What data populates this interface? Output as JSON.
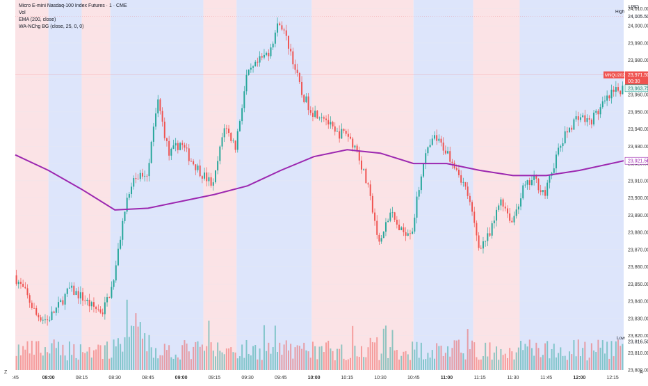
{
  "legend": {
    "title": "Micro E-mini Nasdaq-100 Index Futures · 1 · CME",
    "line1": "Vol",
    "line2": "EMA (200, close)",
    "line3": "WA-NChg BG (close, 25, 0, 0)"
  },
  "axis": {
    "currency": "USD",
    "high_label": "High",
    "high_value": "24,005.50",
    "low_label": "Low",
    "low_value": "23,816.50",
    "symbol_tag": "MNQU2025",
    "last_price": "23,971.50",
    "countdown": "00:30",
    "price_tag2": "23,963.75",
    "ema_value": "23,921.56",
    "price_ticks": [
      "24,010.00",
      "24,000.00",
      "23,990.00",
      "23,980.00",
      "23,970.00",
      "23,960.00",
      "23,950.00",
      "23,940.00",
      "23,930.00",
      "23,920.00",
      "23,910.00",
      "23,900.00",
      "23,890.00",
      "23,880.00",
      "23,870.00",
      "23,860.00",
      "23,850.00",
      "23,840.00",
      "23,830.00",
      "23,820.00",
      "23,810.00",
      "23,800.00"
    ],
    "time_ticks": [
      ":45",
      "08:00",
      "08:15",
      "08:30",
      "08:45",
      "09:00",
      "09:15",
      "09:30",
      "09:45",
      "10:00",
      "10:15",
      "10:30",
      "10:45",
      "11:00",
      "11:15",
      "11:30",
      "11:45",
      "12:00",
      "12:15"
    ],
    "corner_left": "Z",
    "corner_right": "A"
  },
  "colors": {
    "up": "#26a69a",
    "down": "#ef5350",
    "ema": "#9c27b0",
    "bg_bull": "#dde5fb",
    "bg_bear": "#fbe3e6",
    "bg_neutral": "#ffffff",
    "high_line": "#ef5350"
  },
  "chart_data": {
    "type": "candlestick",
    "title": "Micro E-mini Nasdaq-100 Index Futures · 1 · CME",
    "ylim": [
      23800,
      24015
    ],
    "price_high": 24005.5,
    "price_low": 23816.5,
    "last_price": 23971.5,
    "start_time": "07:45",
    "end_time": "12:20",
    "ema_points": [
      {
        "time": "07:45",
        "value": 23925
      },
      {
        "time": "08:00",
        "value": 23916
      },
      {
        "time": "08:15",
        "value": 23905
      },
      {
        "time": "08:30",
        "value": 23893
      },
      {
        "time": "08:45",
        "value": 23894
      },
      {
        "time": "09:00",
        "value": 23898
      },
      {
        "time": "09:15",
        "value": 23902
      },
      {
        "time": "09:30",
        "value": 23907
      },
      {
        "time": "09:45",
        "value": 23916
      },
      {
        "time": "10:00",
        "value": 23924
      },
      {
        "time": "10:15",
        "value": 23928
      },
      {
        "time": "10:30",
        "value": 23926
      },
      {
        "time": "10:45",
        "value": 23920
      },
      {
        "time": "11:00",
        "value": 23920
      },
      {
        "time": "11:15",
        "value": 23916
      },
      {
        "time": "11:30",
        "value": 23913
      },
      {
        "time": "11:45",
        "value": 23913
      },
      {
        "time": "12:00",
        "value": 23916
      },
      {
        "time": "12:20",
        "value": 23921.56
      }
    ],
    "price_path": [
      {
        "time": "07:45",
        "value": 23855
      },
      {
        "time": "07:50",
        "value": 23845
      },
      {
        "time": "07:55",
        "value": 23832
      },
      {
        "time": "08:00",
        "value": 23829
      },
      {
        "time": "08:05",
        "value": 23837
      },
      {
        "time": "08:10",
        "value": 23847
      },
      {
        "time": "08:15",
        "value": 23843
      },
      {
        "time": "08:20",
        "value": 23837
      },
      {
        "time": "08:25",
        "value": 23834
      },
      {
        "time": "08:30",
        "value": 23851
      },
      {
        "time": "08:35",
        "value": 23895
      },
      {
        "time": "08:40",
        "value": 23912
      },
      {
        "time": "08:45",
        "value": 23915
      },
      {
        "time": "08:50",
        "value": 23956
      },
      {
        "time": "08:55",
        "value": 23925
      },
      {
        "time": "09:00",
        "value": 23932
      },
      {
        "time": "09:05",
        "value": 23922
      },
      {
        "time": "09:10",
        "value": 23914
      },
      {
        "time": "09:15",
        "value": 23907
      },
      {
        "time": "09:20",
        "value": 23942
      },
      {
        "time": "09:25",
        "value": 23930
      },
      {
        "time": "09:30",
        "value": 23970
      },
      {
        "time": "09:35",
        "value": 23978
      },
      {
        "time": "09:40",
        "value": 23985
      },
      {
        "time": "09:45",
        "value": 24003
      },
      {
        "time": "09:50",
        "value": 23985
      },
      {
        "time": "09:55",
        "value": 23960
      },
      {
        "time": "10:00",
        "value": 23950
      },
      {
        "time": "10:05",
        "value": 23948
      },
      {
        "time": "10:10",
        "value": 23937
      },
      {
        "time": "10:15",
        "value": 23938
      },
      {
        "time": "10:20",
        "value": 23928
      },
      {
        "time": "10:25",
        "value": 23905
      },
      {
        "time": "10:30",
        "value": 23873
      },
      {
        "time": "10:35",
        "value": 23891
      },
      {
        "time": "10:40",
        "value": 23880
      },
      {
        "time": "10:45",
        "value": 23882
      },
      {
        "time": "10:50",
        "value": 23922
      },
      {
        "time": "10:55",
        "value": 23935
      },
      {
        "time": "11:00",
        "value": 23928
      },
      {
        "time": "11:05",
        "value": 23918
      },
      {
        "time": "11:10",
        "value": 23902
      },
      {
        "time": "11:15",
        "value": 23872
      },
      {
        "time": "11:20",
        "value": 23878
      },
      {
        "time": "11:25",
        "value": 23900
      },
      {
        "time": "11:30",
        "value": 23886
      },
      {
        "time": "11:35",
        "value": 23905
      },
      {
        "time": "11:40",
        "value": 23911
      },
      {
        "time": "11:45",
        "value": 23902
      },
      {
        "time": "11:50",
        "value": 23924
      },
      {
        "time": "11:55",
        "value": 23939
      },
      {
        "time": "12:00",
        "value": 23948
      },
      {
        "time": "12:05",
        "value": 23944
      },
      {
        "time": "12:10",
        "value": 23952
      },
      {
        "time": "12:15",
        "value": 23960
      },
      {
        "time": "12:20",
        "value": 23964
      }
    ],
    "background_regimes": [
      {
        "from": "07:45",
        "to": "08:00",
        "state": "bear"
      },
      {
        "from": "08:00",
        "to": "08:15",
        "state": "bull"
      },
      {
        "from": "08:15",
        "to": "08:28",
        "state": "bear"
      },
      {
        "from": "08:28",
        "to": "09:10",
        "state": "bull"
      },
      {
        "from": "09:10",
        "to": "09:25",
        "state": "bear"
      },
      {
        "from": "09:25",
        "to": "09:59",
        "state": "bull"
      },
      {
        "from": "09:59",
        "to": "10:45",
        "state": "bear"
      },
      {
        "from": "10:45",
        "to": "11:12",
        "state": "bull"
      },
      {
        "from": "11:12",
        "to": "11:33",
        "state": "bear"
      },
      {
        "from": "11:33",
        "to": "12:20",
        "state": "bull"
      }
    ]
  }
}
